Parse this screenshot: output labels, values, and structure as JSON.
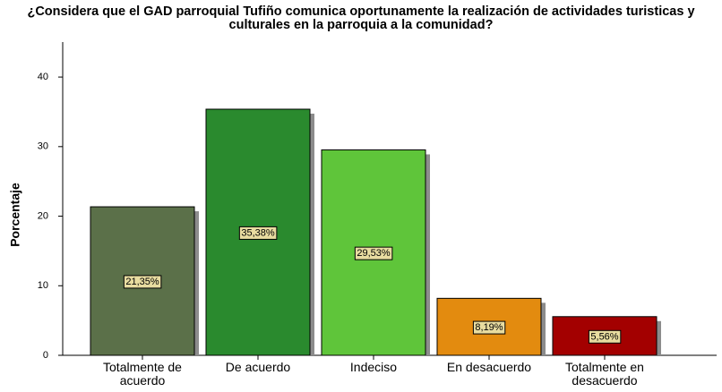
{
  "chart_data": {
    "type": "bar",
    "title": "¿Considera que el GAD parroquial Tufiño comunica oportunamente la realización de actividades turisticas y culturales en la parroquia a la comunidad?",
    "y_label": "Porcentaje",
    "categories": [
      "Totalmente de acuerdo",
      "De acuerdo",
      "Indeciso",
      "En desacuerdo",
      "Totalmente en desacuerdo"
    ],
    "values": [
      21.35,
      35.38,
      29.53,
      8.19,
      5.56
    ],
    "value_labels": [
      "21,35%",
      "35,38%",
      "29,53%",
      "8,19%",
      "5,56%"
    ],
    "colors": [
      "#5b7049",
      "#2a8a2e",
      "#5fc53a",
      "#e38b0f",
      "#a30000"
    ],
    "ylim": [
      0,
      44
    ],
    "yticks": [
      0,
      10,
      20,
      30,
      40
    ],
    "grid": false
  }
}
